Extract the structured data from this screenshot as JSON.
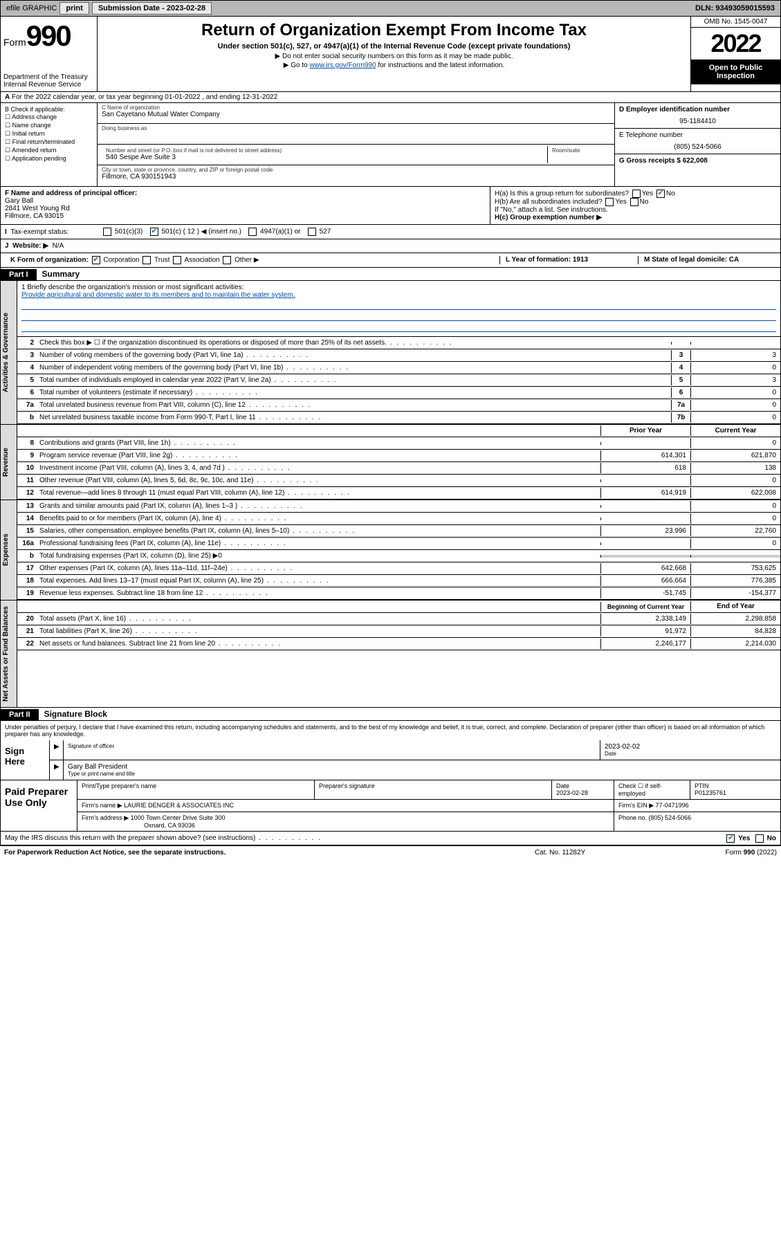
{
  "topbar": {
    "efile": "efile GRAPHIC",
    "print": "print",
    "subdate_lbl": "Submission Date - ",
    "subdate": "2023-02-28",
    "dln_lbl": "DLN: ",
    "dln": "93493059015593"
  },
  "header": {
    "form": "Form",
    "form_no": "990",
    "dept": "Department of the Treasury",
    "irs": "Internal Revenue Service",
    "title": "Return of Organization Exempt From Income Tax",
    "sub1": "Under section 501(c), 527, or 4947(a)(1) of the Internal Revenue Code (except private foundations)",
    "sub2": "▶ Do not enter social security numbers on this form as it may be made public.",
    "sub3_a": "▶ Go to ",
    "sub3_link": "www.irs.gov/Form990",
    "sub3_b": " for instructions and the latest information.",
    "omb": "OMB No. 1545-0047",
    "year": "2022",
    "public": "Open to Public Inspection"
  },
  "line_a": "For the 2022 calendar year, or tax year beginning 01-01-2022   , and ending 12-31-2022",
  "b": {
    "hdr": "B Check if applicable:",
    "c1": "Address change",
    "c2": "Name change",
    "c3": "Initial return",
    "c4": "Final return/terminated",
    "c5": "Amended return",
    "c6": "Application pending"
  },
  "c": {
    "name_lbl": "C Name of organization",
    "name": "San Cayetano Mutual Water Company",
    "dba_lbl": "Doing business as",
    "addr_lbl": "Number and street (or P.O. box if mail is not delivered to street address)",
    "addr": "540 Sespe Ave Suite 3",
    "room_lbl": "Room/suite",
    "city_lbl": "City or town, state or province, country, and ZIP or foreign postal code",
    "city": "Fillmore, CA  930151943"
  },
  "d": {
    "ein_lbl": "D Employer identification number",
    "ein": "95-1184410",
    "tel_lbl": "E Telephone number",
    "tel": "(805) 524-5066",
    "gross_lbl": "G Gross receipts $ ",
    "gross": "622,008"
  },
  "f": {
    "lbl": "F  Name and address of principal officer:",
    "name": "Gary Ball",
    "addr1": "2841 West Young Rd",
    "addr2": "Fillmore, CA  93015"
  },
  "h": {
    "a": "H(a)  Is this a group return for subordinates?",
    "b": "H(b)  Are all subordinates included?",
    "ifno": "If \"No,\" attach a list. See instructions.",
    "c": "H(c)  Group exemption number ▶",
    "yes": "Yes",
    "no": "No"
  },
  "i": {
    "lbl": "Tax-exempt status:",
    "o1": "501(c)(3)",
    "o2": "501(c) ( 12 ) ◀ (insert no.)",
    "o3": "4947(a)(1) or",
    "o4": "527"
  },
  "j": {
    "lbl": "Website: ▶",
    "val": "N/A"
  },
  "k": {
    "lbl": "K Form of organization:",
    "o1": "Corporation",
    "o2": "Trust",
    "o3": "Association",
    "o4": "Other ▶",
    "l": "L Year of formation: 1913",
    "m": "M State of legal domicile: CA"
  },
  "part1": {
    "hdr": "Part I",
    "title": "Summary"
  },
  "mission": {
    "lbl": "1    Briefly describe the organization's mission or most significant activities:",
    "text": "Provide agricultural and domestic water to its members and to maintain the water system."
  },
  "gov_lines": [
    {
      "n": "2",
      "d": "Check this box ▶ ☐  if the organization discontinued its operations or disposed of more than 25% of its net assets.",
      "box": "",
      "v": ""
    },
    {
      "n": "3",
      "d": "Number of voting members of the governing body (Part VI, line 1a)",
      "box": "3",
      "v": "3"
    },
    {
      "n": "4",
      "d": "Number of independent voting members of the governing body (Part VI, line 1b)",
      "box": "4",
      "v": "0"
    },
    {
      "n": "5",
      "d": "Total number of individuals employed in calendar year 2022 (Part V, line 2a)",
      "box": "5",
      "v": "3"
    },
    {
      "n": "6",
      "d": "Total number of volunteers (estimate if necessary)",
      "box": "6",
      "v": "0"
    },
    {
      "n": "7a",
      "d": "Total unrelated business revenue from Part VIII, column (C), line 12",
      "box": "7a",
      "v": "0"
    },
    {
      "n": "b",
      "d": "Net unrelated business taxable income from Form 990-T, Part I, line 11",
      "box": "7b",
      "v": "0"
    }
  ],
  "rev_hdr": {
    "py": "Prior Year",
    "cy": "Current Year"
  },
  "rev_lines": [
    {
      "n": "8",
      "d": "Contributions and grants (Part VIII, line 1h)",
      "py": "",
      "cy": "0"
    },
    {
      "n": "9",
      "d": "Program service revenue (Part VIII, line 2g)",
      "py": "614,301",
      "cy": "621,870"
    },
    {
      "n": "10",
      "d": "Investment income (Part VIII, column (A), lines 3, 4, and 7d )",
      "py": "618",
      "cy": "138"
    },
    {
      "n": "11",
      "d": "Other revenue (Part VIII, column (A), lines 5, 6d, 8c, 9c, 10c, and 11e)",
      "py": "",
      "cy": "0"
    },
    {
      "n": "12",
      "d": "Total revenue—add lines 8 through 11 (must equal Part VIII, column (A), line 12)",
      "py": "614,919",
      "cy": "622,008"
    }
  ],
  "exp_lines": [
    {
      "n": "13",
      "d": "Grants and similar amounts paid (Part IX, column (A), lines 1–3 )",
      "py": "",
      "cy": "0"
    },
    {
      "n": "14",
      "d": "Benefits paid to or for members (Part IX, column (A), line 4)",
      "py": "",
      "cy": "0"
    },
    {
      "n": "15",
      "d": "Salaries, other compensation, employee benefits (Part IX, column (A), lines 5–10)",
      "py": "23,996",
      "cy": "22,760"
    },
    {
      "n": "16a",
      "d": "Professional fundraising fees (Part IX, column (A), line 11e)",
      "py": "",
      "cy": "0"
    },
    {
      "n": "b",
      "d": "Total fundraising expenses (Part IX, column (D), line 25) ▶0",
      "py": "—",
      "cy": "—"
    },
    {
      "n": "17",
      "d": "Other expenses (Part IX, column (A), lines 11a–11d, 11f–24e)",
      "py": "642,668",
      "cy": "753,625"
    },
    {
      "n": "18",
      "d": "Total expenses. Add lines 13–17 (must equal Part IX, column (A), line 25)",
      "py": "666,664",
      "cy": "776,385"
    },
    {
      "n": "19",
      "d": "Revenue less expenses. Subtract line 18 from line 12",
      "py": "-51,745",
      "cy": "-154,377"
    }
  ],
  "net_hdr": {
    "py": "Beginning of Current Year",
    "cy": "End of Year"
  },
  "net_lines": [
    {
      "n": "20",
      "d": "Total assets (Part X, line 16)",
      "py": "2,338,149",
      "cy": "2,298,858"
    },
    {
      "n": "21",
      "d": "Total liabilities (Part X, line 26)",
      "py": "91,972",
      "cy": "84,828"
    },
    {
      "n": "22",
      "d": "Net assets or fund balances. Subtract line 21 from line 20",
      "py": "2,246,177",
      "cy": "2,214,030"
    }
  ],
  "vtabs": {
    "gov": "Activities & Governance",
    "rev": "Revenue",
    "exp": "Expenses",
    "net": "Net Assets or Fund Balances"
  },
  "part2": {
    "hdr": "Part II",
    "title": "Signature Block"
  },
  "sig": {
    "decl": "Under penalties of perjury, I declare that I have examined this return, including accompanying schedules and statements, and to the best of my knowledge and belief, it is true, correct, and complete. Declaration of preparer (other than officer) is based on all information of which preparer has any knowledge.",
    "sign_here": "Sign Here",
    "sig_lbl": "Signature of officer",
    "date_lbl": "Date",
    "date": "2023-02-02",
    "name": "Gary Ball  President",
    "name_lbl": "Type or print name and title"
  },
  "paid": {
    "hdr": "Paid Preparer Use Only",
    "c1": "Print/Type preparer's name",
    "c2": "Preparer's signature",
    "c3": "Date",
    "c3v": "2023-02-28",
    "c4": "Check ☐ if self-employed",
    "c5": "PTIN",
    "c5v": "P01235761",
    "firm_lbl": "Firm's name     ▶ ",
    "firm": "LAURIE DENGER & ASSOCIATES INC",
    "ein_lbl": "Firm's EIN ▶ ",
    "ein": "77-0471996",
    "addr_lbl": "Firm's address ▶ ",
    "addr1": "1000 Town Center Drive Suite 300",
    "addr2": "Oxnard, CA  93036",
    "ph_lbl": "Phone no. ",
    "ph": "(805) 524-5066",
    "discuss": "May the IRS discuss this return with the preparer shown above? (see instructions)"
  },
  "footer": {
    "left": "For Paperwork Reduction Act Notice, see the separate instructions.",
    "mid": "Cat. No. 11282Y",
    "right": "Form 990 (2022)"
  }
}
